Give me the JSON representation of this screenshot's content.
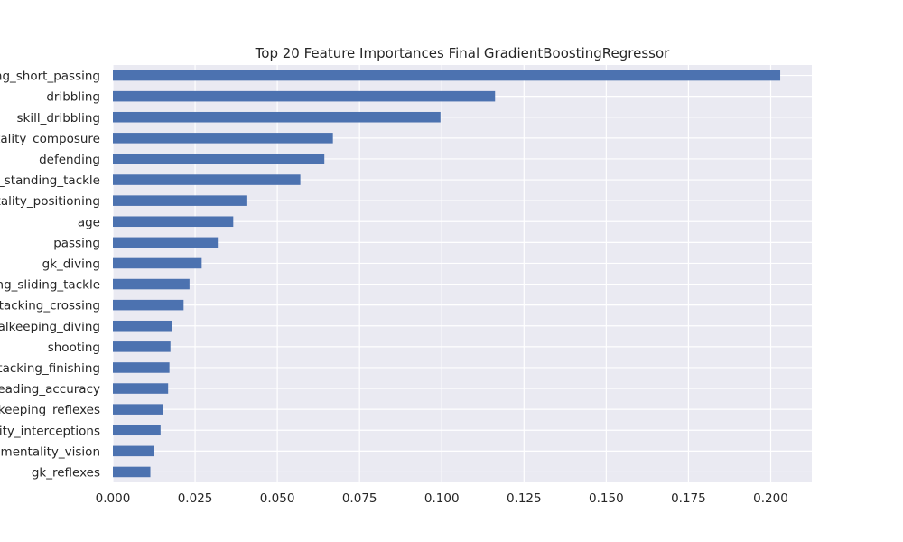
{
  "chart_data": {
    "type": "bar",
    "orientation": "horizontal",
    "title": "Top 20 Feature Importances Final GradientBoostingRegressor",
    "xlabel": "",
    "ylabel": "",
    "xlim": [
      0.0,
      0.2125
    ],
    "xticks": [
      "0.000",
      "0.025",
      "0.050",
      "0.075",
      "0.100",
      "0.125",
      "0.150",
      "0.175",
      "0.200"
    ],
    "grid": true,
    "bar_color": "#4c72b0",
    "background_color": "#eaeaf2",
    "categories": [
      "attacking_short_passing",
      "dribbling",
      "skill_dribbling",
      "mentality_composure",
      "defending",
      "defending_standing_tackle",
      "mentality_positioning",
      "age",
      "passing",
      "gk_diving",
      "defending_sliding_tackle",
      "attacking_crossing",
      "goalkeeping_diving",
      "shooting",
      "attacking_finishing",
      "attacking_heading_accuracy",
      "goalkeeping_reflexes",
      "mentality_interceptions",
      "mentality_vision",
      "gk_reflexes"
    ],
    "values": [
      0.2029,
      0.1162,
      0.0996,
      0.0669,
      0.0643,
      0.057,
      0.0406,
      0.0366,
      0.0319,
      0.027,
      0.0233,
      0.0215,
      0.0181,
      0.0175,
      0.0172,
      0.0168,
      0.0152,
      0.0145,
      0.0126,
      0.0114
    ]
  }
}
